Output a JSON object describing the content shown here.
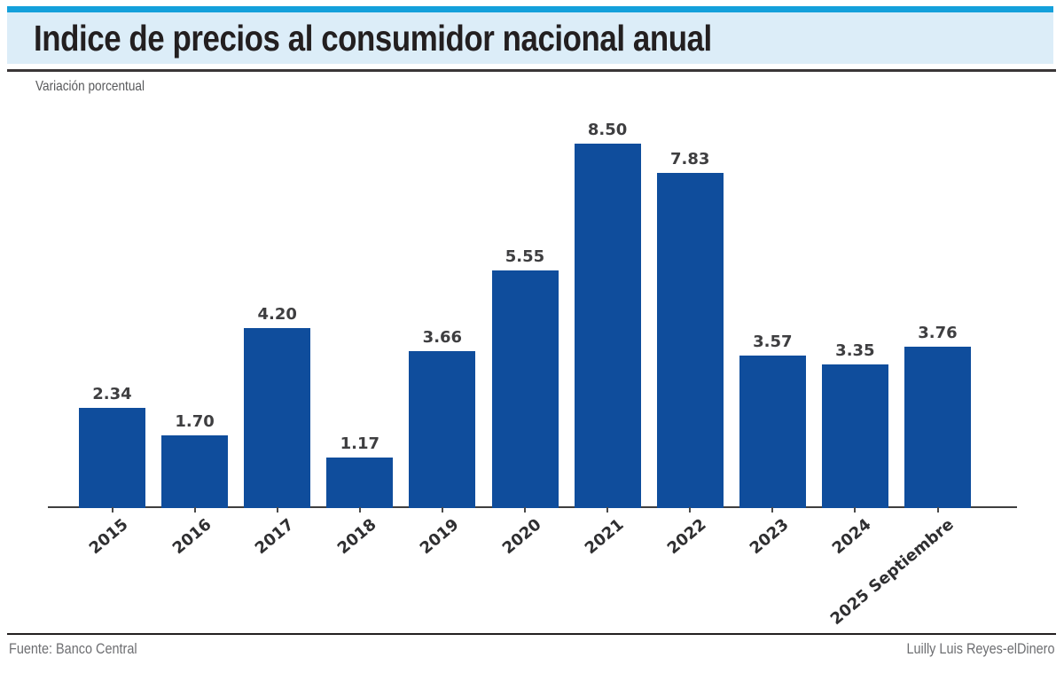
{
  "header": {
    "title": "Indice de precios al consumidor nacional anual",
    "accent_color": "#14a0db",
    "band_color": "#dcedf8"
  },
  "subtitle": "Variación porcentual",
  "chart_data": {
    "type": "bar",
    "title": "Indice de precios al consumidor nacional anual",
    "subtitle": "Variación porcentual",
    "categories": [
      "2015",
      "2016",
      "2017",
      "2018",
      "2019",
      "2020",
      "2021",
      "2022",
      "2023",
      "2024",
      "2025 Septiembre"
    ],
    "values": [
      2.34,
      1.7,
      4.2,
      1.17,
      3.66,
      5.55,
      8.5,
      7.83,
      3.57,
      3.35,
      3.76
    ],
    "value_labels": [
      "2.34",
      "1.70",
      "4.20",
      "1.17",
      "3.66",
      "5.55",
      "8.50",
      "7.83",
      "3.57",
      "3.35",
      "3.76"
    ],
    "bar_color": "#0f4d9c",
    "xlabel": "",
    "ylabel": "Variación porcentual",
    "ylim": [
      0,
      9
    ],
    "grid": false,
    "legend": "none",
    "value_label_position": "above",
    "x_tick_rotation_deg": 40
  },
  "footer": {
    "source": "Fuente: Banco Central",
    "credit": "Luilly Luis Reyes-elDinero"
  }
}
